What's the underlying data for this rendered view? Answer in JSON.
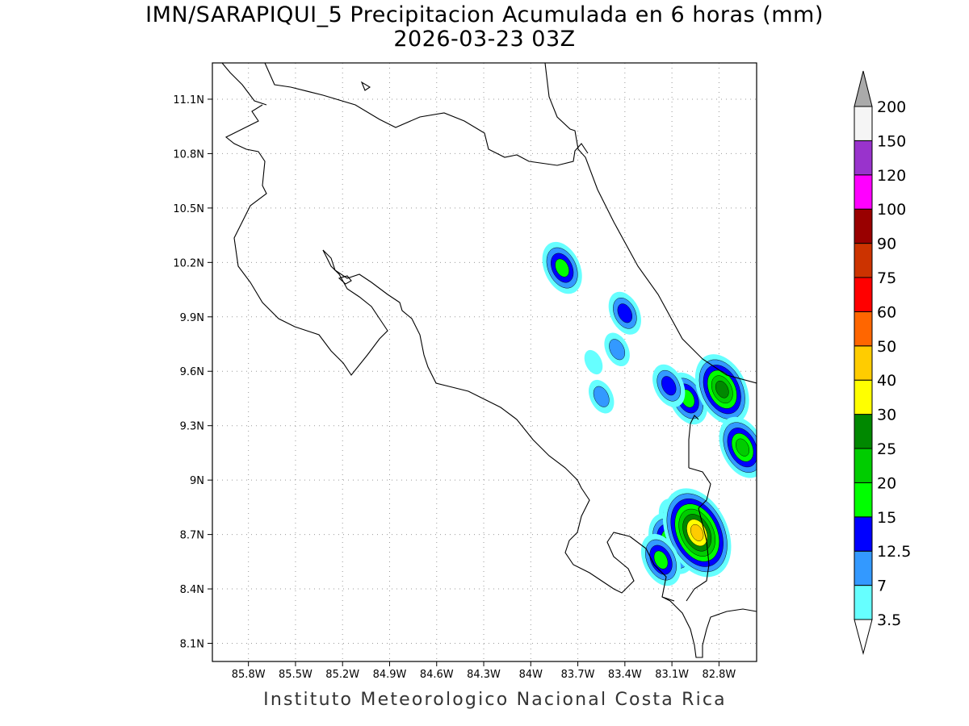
{
  "title": {
    "line1": "IMN/SARAPIQUI_5 Precipitacion Acumulada en 6 horas (mm)",
    "line2": "2026-03-23 03Z"
  },
  "footer": "Instituto Meteorologico Nacional Costa Rica",
  "map": {
    "lon_range": [
      -86.03,
      -82.56
    ],
    "lat_range": [
      8.0,
      11.3
    ],
    "x_ticks": [
      {
        "value": -85.8,
        "label": "85.8W"
      },
      {
        "value": -85.5,
        "label": "85.5W"
      },
      {
        "value": -85.2,
        "label": "85.2W"
      },
      {
        "value": -84.9,
        "label": "84.9W"
      },
      {
        "value": -84.6,
        "label": "84.6W"
      },
      {
        "value": -84.3,
        "label": "84.3W"
      },
      {
        "value": -84.0,
        "label": "84W"
      },
      {
        "value": -83.7,
        "label": "83.7W"
      },
      {
        "value": -83.4,
        "label": "83.4W"
      },
      {
        "value": -83.1,
        "label": "83.1W"
      },
      {
        "value": -82.8,
        "label": "82.8W"
      }
    ],
    "y_ticks": [
      {
        "value": 11.1,
        "label": "11.1N"
      },
      {
        "value": 10.8,
        "label": "10.8N"
      },
      {
        "value": 10.5,
        "label": "10.5N"
      },
      {
        "value": 10.2,
        "label": "10.2N"
      },
      {
        "value": 9.9,
        "label": "9.9N"
      },
      {
        "value": 9.6,
        "label": "9.6N"
      },
      {
        "value": 9.3,
        "label": "9.3N"
      },
      {
        "value": 9.0,
        "label": "9N"
      },
      {
        "value": 8.7,
        "label": "8.7N"
      },
      {
        "value": 8.4,
        "label": "8.4N"
      },
      {
        "value": 8.1,
        "label": "8.1N"
      }
    ],
    "grid": true,
    "precip_cells": [
      {
        "lon": -83.8,
        "lat": 10.17,
        "level": 3
      },
      {
        "lon": -83.4,
        "lat": 9.92,
        "level": 2
      },
      {
        "lon": -83.45,
        "lat": 9.72,
        "level": 1
      },
      {
        "lon": -83.0,
        "lat": 9.45,
        "level": 3
      },
      {
        "lon": -83.12,
        "lat": 9.52,
        "level": 2
      },
      {
        "lon": -82.78,
        "lat": 9.5,
        "level": 5
      },
      {
        "lon": -82.65,
        "lat": 9.18,
        "level": 4
      },
      {
        "lon": -83.08,
        "lat": 8.78,
        "level": 2
      },
      {
        "lon": -83.1,
        "lat": 8.65,
        "level": 4
      },
      {
        "lon": -82.94,
        "lat": 8.71,
        "level": 7
      },
      {
        "lon": -83.17,
        "lat": 8.56,
        "level": 3
      },
      {
        "lon": -83.6,
        "lat": 9.65,
        "level": 0
      },
      {
        "lon": -83.55,
        "lat": 9.46,
        "level": 1
      }
    ]
  },
  "colorbar": {
    "colors": [
      "#66ffff",
      "#3399ff",
      "#0000ff",
      "#00ff00",
      "#00cc00",
      "#008800",
      "#ffff00",
      "#ffcc00",
      "#ff6600",
      "#ff0000",
      "#cc3300",
      "#990000",
      "#ff00ff",
      "#9933cc",
      "#f5f5f5",
      "#aaaaaa"
    ],
    "labels": [
      "3.5",
      "7",
      "12.5",
      "15",
      "20",
      "25",
      "30",
      "40",
      "50",
      "60",
      "75",
      "90",
      "100",
      "120",
      "150",
      "200"
    ]
  }
}
